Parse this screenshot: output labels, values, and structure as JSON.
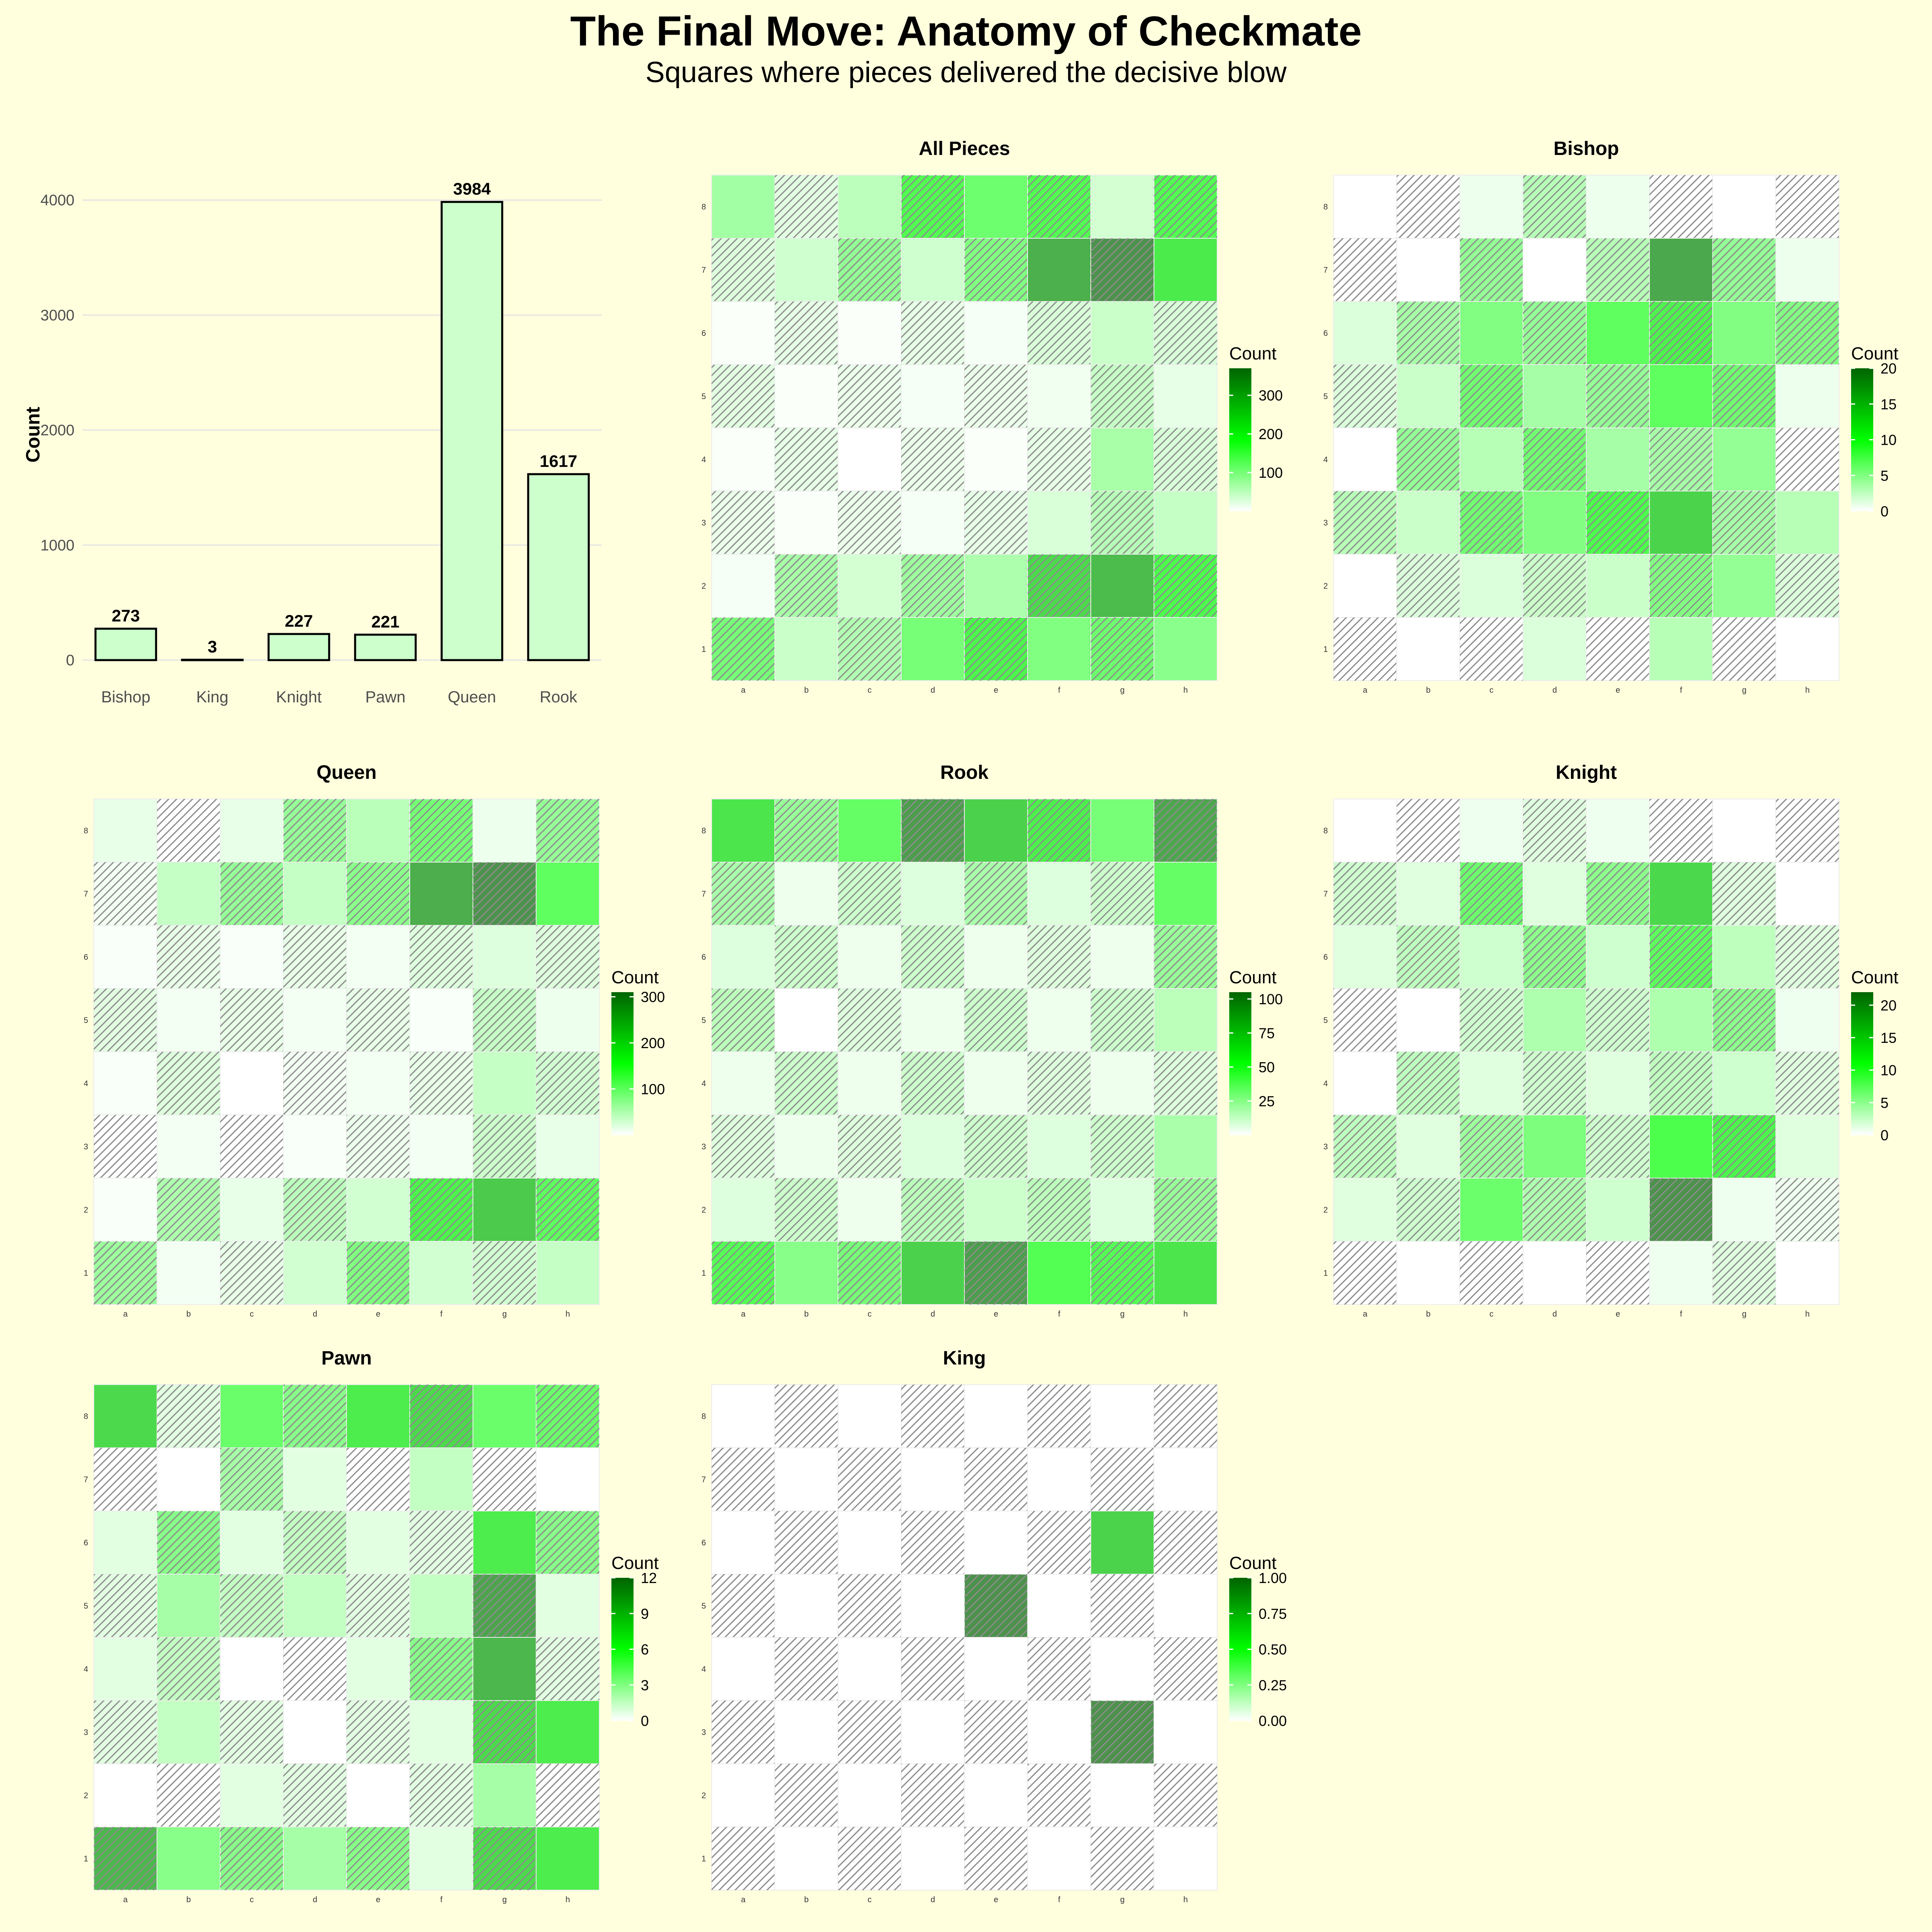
{
  "title": "The Final Move: Anatomy of Checkmate",
  "subtitle": "Squares where pieces delivered the decisive blow",
  "colors": {
    "background": "#ffffde",
    "bar_fill": "#ccffcc",
    "bar_stroke": "#000000",
    "scale_low": "#ffffff",
    "scale_mid": "#00ff00",
    "scale_high": "#006400",
    "hatch": "#7f7f7f"
  },
  "chart_data": [
    {
      "type": "bar",
      "ylabel": "Count",
      "categories": [
        "Bishop",
        "King",
        "Knight",
        "Pawn",
        "Queen",
        "Rook"
      ],
      "values": [
        273,
        3,
        227,
        221,
        3984,
        1617
      ],
      "ylim": [
        0,
        4200
      ],
      "yticks": [
        0,
        1000,
        2000,
        3000,
        4000
      ],
      "data_labels": [
        "273",
        "3",
        "227",
        "221",
        "3984",
        "1617"
      ],
      "grid": true
    },
    {
      "type": "heatmap",
      "title": "All Pieces",
      "legend_title": "Count",
      "files": [
        "a",
        "b",
        "c",
        "d",
        "e",
        "f",
        "g",
        "h"
      ],
      "ranks": [
        "8",
        "7",
        "6",
        "5",
        "4",
        "3",
        "2",
        "1"
      ],
      "max": 370,
      "legend_ticks": [
        100,
        200,
        300
      ],
      "values": [
        [
          95,
          30,
          70,
          180,
          150,
          180,
          45,
          180
        ],
        [
          35,
          50,
          110,
          50,
          130,
          320,
          370,
          220
        ],
        [
          5,
          25,
          5,
          25,
          10,
          40,
          55,
          40
        ],
        [
          30,
          5,
          20,
          10,
          20,
          15,
          60,
          25
        ],
        [
          5,
          25,
          0,
          20,
          5,
          25,
          90,
          40
        ],
        [
          20,
          5,
          20,
          10,
          25,
          40,
          75,
          60
        ],
        [
          10,
          90,
          45,
          100,
          85,
          250,
          300,
          190
        ],
        [
          140,
          55,
          80,
          140,
          200,
          130,
          150,
          120
        ]
      ]
    },
    {
      "type": "heatmap",
      "title": "Bishop",
      "legend_title": "Count",
      "files": [
        "a",
        "b",
        "c",
        "d",
        "e",
        "f",
        "g",
        "h"
      ],
      "ranks": [
        "8",
        "7",
        "6",
        "5",
        "4",
        "3",
        "2",
        "1"
      ],
      "max": 20,
      "legend_ticks": [
        0,
        5,
        10,
        15,
        20
      ],
      "values": [
        [
          0,
          0,
          1,
          4,
          1,
          0,
          0,
          0
        ],
        [
          0,
          0,
          6,
          0,
          4,
          18,
          6,
          1
        ],
        [
          2,
          5,
          7,
          6,
          9,
          11,
          7,
          7
        ],
        [
          2,
          3,
          8,
          5,
          6,
          9,
          8,
          1
        ],
        [
          0,
          6,
          4,
          8,
          5,
          5,
          6,
          0
        ],
        [
          4,
          3,
          8,
          7,
          10,
          14,
          5,
          4
        ],
        [
          0,
          2,
          2,
          3,
          3,
          7,
          6,
          2
        ],
        [
          0,
          0,
          0,
          2,
          0,
          4,
          0,
          0
        ]
      ]
    },
    {
      "type": "heatmap",
      "title": "Queen",
      "legend_title": "Count",
      "files": [
        "a",
        "b",
        "c",
        "d",
        "e",
        "f",
        "g",
        "h"
      ],
      "ranks": [
        "8",
        "7",
        "6",
        "5",
        "4",
        "3",
        "2",
        "1"
      ],
      "max": 310,
      "legend_ticks": [
        100,
        200,
        300
      ],
      "values": [
        [
          20,
          0,
          20,
          90,
          60,
          120,
          15,
          90
        ],
        [
          10,
          50,
          90,
          50,
          100,
          270,
          310,
          140
        ],
        [
          5,
          20,
          5,
          20,
          10,
          30,
          30,
          30
        ],
        [
          25,
          10,
          20,
          10,
          20,
          5,
          50,
          15
        ],
        [
          5,
          30,
          0,
          10,
          10,
          20,
          50,
          40
        ],
        [
          0,
          10,
          0,
          5,
          15,
          10,
          45,
          20
        ],
        [
          5,
          70,
          20,
          60,
          40,
          170,
          230,
          140
        ],
        [
          85,
          10,
          20,
          40,
          110,
          40,
          40,
          50
        ]
      ]
    },
    {
      "type": "heatmap",
      "title": "Rook",
      "legend_title": "Count",
      "files": [
        "a",
        "b",
        "c",
        "d",
        "e",
        "f",
        "g",
        "h"
      ],
      "ranks": [
        "8",
        "7",
        "6",
        "5",
        "4",
        "3",
        "2",
        "1"
      ],
      "max": 105,
      "legend_ticks": [
        25,
        50,
        75,
        100
      ],
      "values": [
        [
          65,
          30,
          45,
          100,
          75,
          60,
          40,
          95
        ],
        [
          25,
          5,
          15,
          10,
          25,
          10,
          15,
          45
        ],
        [
          10,
          15,
          5,
          15,
          5,
          10,
          5,
          30
        ],
        [
          20,
          0,
          10,
          5,
          15,
          5,
          15,
          20
        ],
        [
          5,
          15,
          5,
          15,
          5,
          10,
          5,
          10
        ],
        [
          10,
          5,
          10,
          10,
          15,
          10,
          15,
          25
        ],
        [
          10,
          15,
          5,
          20,
          15,
          20,
          10,
          30
        ],
        [
          50,
          35,
          40,
          75,
          100,
          50,
          50,
          65
        ]
      ]
    },
    {
      "type": "heatmap",
      "title": "Knight",
      "legend_title": "Count",
      "files": [
        "a",
        "b",
        "c",
        "d",
        "e",
        "f",
        "g",
        "h"
      ],
      "ranks": [
        "8",
        "7",
        "6",
        "5",
        "4",
        "3",
        "2",
        "1"
      ],
      "max": 22,
      "legend_ticks": [
        0,
        5,
        10,
        15,
        20
      ],
      "values": [
        [
          0,
          0,
          1,
          2,
          1,
          0,
          0,
          0
        ],
        [
          3,
          2,
          9,
          2,
          7,
          15,
          2,
          0
        ],
        [
          2,
          4,
          3,
          7,
          3,
          10,
          4,
          2
        ],
        [
          0,
          0,
          3,
          5,
          3,
          5,
          7,
          1
        ],
        [
          0,
          4,
          2,
          3,
          2,
          4,
          3,
          2
        ],
        [
          4,
          2,
          6,
          8,
          3,
          11,
          12,
          2
        ],
        [
          2,
          3,
          9,
          5,
          3,
          22,
          1,
          1
        ],
        [
          0,
          0,
          0,
          0,
          0,
          1,
          2,
          0
        ]
      ]
    },
    {
      "type": "heatmap",
      "title": "Pawn",
      "legend_title": "Count",
      "files": [
        "a",
        "b",
        "c",
        "d",
        "e",
        "f",
        "g",
        "h"
      ],
      "ranks": [
        "8",
        "7",
        "6",
        "5",
        "4",
        "3",
        "2",
        "1"
      ],
      "max": 12,
      "legend_ticks": [
        0,
        3,
        6,
        9,
        12
      ],
      "values": [
        [
          8,
          1,
          5,
          4,
          7,
          8,
          5,
          5
        ],
        [
          0,
          0,
          3,
          1,
          0,
          2,
          0,
          0
        ],
        [
          1,
          4,
          1,
          2,
          1,
          1,
          7,
          4
        ],
        [
          1,
          3,
          2,
          2,
          1,
          2,
          11,
          1
        ],
        [
          1,
          2,
          0,
          0,
          1,
          4,
          10,
          1
        ],
        [
          1,
          2,
          1,
          0,
          1,
          1,
          8,
          7
        ],
        [
          0,
          0,
          1,
          1,
          0,
          1,
          3,
          0
        ],
        [
          10,
          4,
          4,
          3,
          4,
          1,
          8,
          7
        ]
      ]
    },
    {
      "type": "heatmap",
      "title": "King",
      "legend_title": "Count",
      "files": [
        "a",
        "b",
        "c",
        "d",
        "e",
        "f",
        "g",
        "h"
      ],
      "ranks": [
        "8",
        "7",
        "6",
        "5",
        "4",
        "3",
        "2",
        "1"
      ],
      "max": 1,
      "legend_ticks": [
        "0.00",
        "0.25",
        "0.50",
        "0.75",
        "1.00"
      ],
      "values": [
        [
          0,
          0,
          0,
          0,
          0,
          0,
          0,
          0
        ],
        [
          0,
          0,
          0,
          0,
          0,
          0,
          0,
          0
        ],
        [
          0,
          0,
          0,
          0,
          0,
          0,
          0.7,
          0
        ],
        [
          0,
          0,
          0,
          0,
          1,
          0,
          0,
          0
        ],
        [
          0,
          0,
          0,
          0,
          0,
          0,
          0,
          0
        ],
        [
          0,
          0,
          0,
          0,
          0,
          0,
          1,
          0
        ],
        [
          0,
          0,
          0,
          0,
          0,
          0,
          0,
          0
        ],
        [
          0,
          0,
          0,
          0,
          0,
          0,
          0,
          0
        ]
      ]
    }
  ]
}
